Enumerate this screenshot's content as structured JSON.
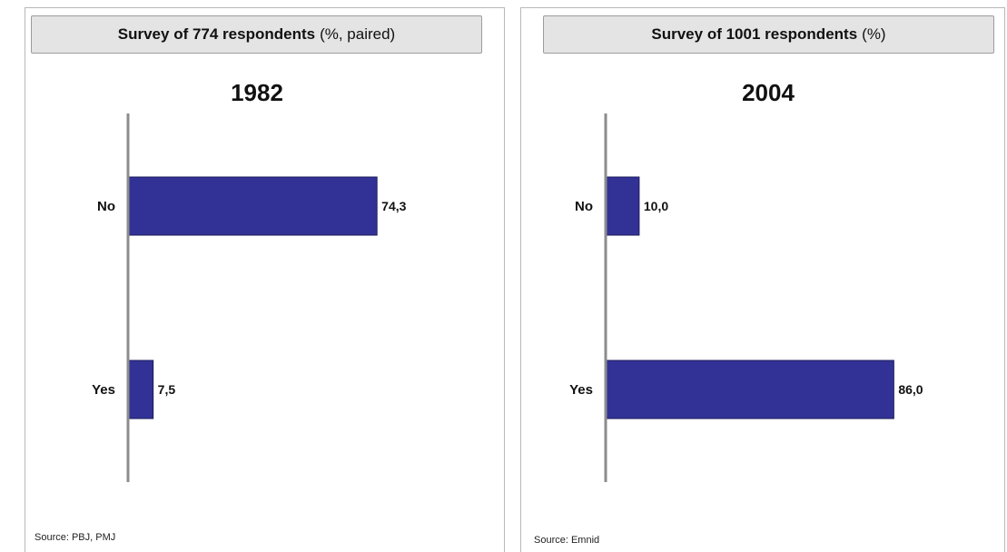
{
  "colors": {
    "bar": "#323296",
    "bar_border": "#1a1a5a",
    "axis": "#8c8c8c"
  },
  "panels": [
    {
      "header_main": "Survey of 774 respondents",
      "header_sub": "(%, paired)",
      "year": "1982",
      "source": "Source: PBJ, PMJ"
    },
    {
      "header_main": "Survey of 1001 respondents",
      "header_sub": "(%)",
      "year": "2004",
      "source": "Source: Emnid"
    }
  ],
  "chart_data": [
    {
      "type": "bar",
      "orientation": "horizontal",
      "title": "1982",
      "categories": [
        "No",
        "Yes"
      ],
      "values": [
        74.3,
        7.5
      ],
      "value_labels": [
        "74,3",
        "7,5"
      ],
      "xlim": [
        0,
        100
      ],
      "grid": false,
      "legend": "none"
    },
    {
      "type": "bar",
      "orientation": "horizontal",
      "title": "2004",
      "categories": [
        "No",
        "Yes"
      ],
      "values": [
        10.0,
        86.0
      ],
      "value_labels": [
        "10,0",
        "86,0"
      ],
      "xlim": [
        0,
        100
      ],
      "grid": false,
      "legend": "none"
    }
  ]
}
